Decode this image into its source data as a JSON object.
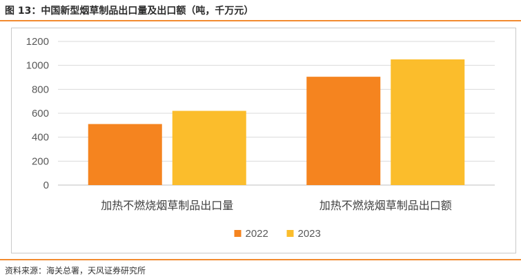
{
  "figure": {
    "title": "图 13：中国新型烟草制品出口量及出口额（吨，千万元）",
    "source": "资料来源：海关总署，天风证券研究所"
  },
  "colors": {
    "accent_rule": "#f28a2e",
    "series_2022": "#f5841f",
    "series_2023": "#fbbd2c"
  },
  "chart_data": {
    "type": "bar",
    "categories": [
      "加热不燃烧烟草制品出口量",
      "加热不燃烧烟草制品出口额"
    ],
    "series": [
      {
        "name": "2022",
        "values": [
          510,
          905
        ],
        "color": "#f5841f"
      },
      {
        "name": "2023",
        "values": [
          620,
          1050
        ],
        "color": "#fbbd2c"
      }
    ],
    "y_ticks": [
      "0",
      "200",
      "400",
      "600",
      "800",
      "1000",
      "1200"
    ],
    "ylim": [
      0,
      1200
    ],
    "grid": true,
    "legend": "bottom"
  }
}
